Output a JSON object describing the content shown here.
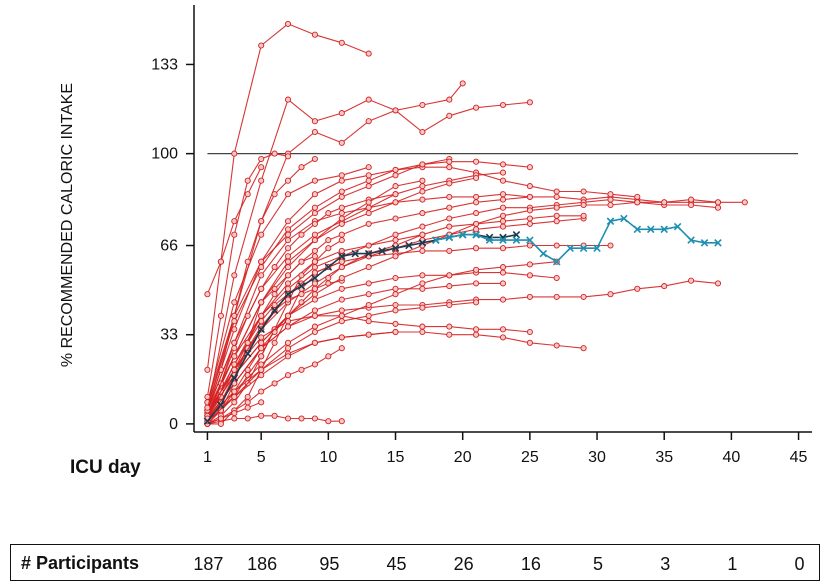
{
  "chart_data": {
    "type": "line",
    "title": "",
    "ylabel": "% RECOMMENDED CALORIC INTAKE",
    "xlabel": "ICU day",
    "xlim": [
      0,
      46
    ],
    "ylim": [
      -3,
      155
    ],
    "x_ticks": [
      1,
      5,
      10,
      15,
      20,
      25,
      30,
      35,
      40,
      45
    ],
    "y_ticks": [
      0,
      33,
      66,
      100,
      133
    ],
    "reference_line": 100,
    "colors": {
      "individual": "#d42020",
      "mean_early": "#1f3a4f",
      "mean_late": "#1f8fb0",
      "axis": "#111111"
    },
    "series": [
      {
        "x": [
          1,
          2,
          3,
          5,
          7,
          9,
          11,
          13
        ],
        "y": [
          20,
          60,
          100,
          140,
          148,
          144,
          141,
          137
        ]
      },
      {
        "x": [
          1,
          3,
          5,
          7,
          9,
          11,
          13,
          15,
          17,
          19,
          20
        ],
        "y": [
          5,
          55,
          90,
          120,
          112,
          115,
          120,
          116,
          118,
          120,
          126
        ]
      },
      {
        "x": [
          1,
          3,
          5,
          7,
          9,
          11,
          13,
          15,
          17,
          19,
          21,
          23,
          25
        ],
        "y": [
          8,
          40,
          75,
          100,
          108,
          104,
          112,
          116,
          108,
          114,
          117,
          118,
          119
        ]
      },
      {
        "x": [
          1,
          3,
          5,
          7,
          9,
          11,
          13,
          15,
          17,
          19,
          21,
          23,
          25,
          27,
          29,
          31,
          33,
          35,
          37,
          39,
          41
        ],
        "y": [
          5,
          30,
          55,
          68,
          75,
          78,
          80,
          82,
          83,
          84,
          84,
          85,
          84,
          84,
          83,
          84,
          83,
          82,
          82,
          82,
          82
        ]
      },
      {
        "x": [
          1,
          3,
          5,
          7,
          9,
          11,
          13,
          15,
          17,
          19,
          21,
          23,
          25,
          27,
          29,
          31,
          33,
          35,
          37,
          39
        ],
        "y": [
          3,
          25,
          40,
          50,
          58,
          62,
          66,
          70,
          73,
          76,
          78,
          80,
          80,
          81,
          82,
          83,
          82,
          81,
          81,
          80
        ]
      },
      {
        "x": [
          1,
          3,
          5,
          7,
          9,
          11,
          13,
          15,
          17,
          19,
          21,
          23,
          25,
          27,
          29,
          31,
          33
        ],
        "y": [
          5,
          35,
          60,
          75,
          85,
          90,
          92,
          94,
          95,
          95,
          93,
          90,
          88,
          86,
          86,
          85,
          84
        ]
      },
      {
        "x": [
          1,
          3,
          5,
          7,
          9,
          11,
          13,
          15,
          17,
          19,
          21,
          23,
          25,
          27,
          29
        ],
        "y": [
          3,
          20,
          35,
          45,
          52,
          58,
          62,
          65,
          68,
          70,
          72,
          73,
          74,
          75,
          76
        ]
      },
      {
        "x": [
          1,
          3,
          5,
          7,
          9,
          11,
          13,
          15,
          17,
          19,
          21,
          23,
          25,
          27,
          29,
          31,
          33,
          35,
          37,
          39
        ],
        "y": [
          2,
          15,
          28,
          36,
          40,
          42,
          43,
          44,
          44,
          45,
          46,
          46,
          47,
          47,
          47,
          48,
          50,
          51,
          53,
          52
        ]
      },
      {
        "x": [
          1,
          3,
          5,
          7,
          9,
          11,
          13,
          15,
          17,
          19,
          21,
          23,
          25,
          27,
          29
        ],
        "y": [
          2,
          12,
          20,
          26,
          30,
          32,
          33,
          34,
          34,
          33,
          33,
          32,
          30,
          29,
          28
        ]
      },
      {
        "x": [
          1,
          3,
          5,
          7,
          9,
          11,
          13,
          15,
          17,
          19,
          21,
          23,
          25,
          27
        ],
        "y": [
          3,
          18,
          30,
          40,
          46,
          50,
          52,
          54,
          55,
          55,
          56,
          56,
          55,
          54
        ]
      },
      {
        "x": [
          1,
          3,
          5,
          7,
          9,
          11,
          13,
          15,
          17,
          19,
          21,
          23,
          25
        ],
        "y": [
          4,
          20,
          32,
          38,
          40,
          40,
          38,
          37,
          36,
          36,
          35,
          35,
          34
        ]
      },
      {
        "x": [
          1,
          3,
          5,
          7,
          9,
          11,
          13,
          15,
          17,
          19,
          21,
          23
        ],
        "y": [
          5,
          30,
          50,
          62,
          70,
          75,
          80,
          85,
          88,
          90,
          92,
          93
        ]
      },
      {
        "x": [
          1,
          3,
          5,
          7,
          9,
          11,
          13,
          15,
          17,
          19,
          21
        ],
        "y": [
          4,
          25,
          45,
          60,
          68,
          74,
          78,
          82,
          86,
          89,
          91
        ]
      },
      {
        "x": [
          1,
          3,
          5,
          7,
          9,
          11,
          13,
          15,
          17,
          19
        ],
        "y": [
          6,
          40,
          60,
          70,
          78,
          84,
          88,
          92,
          96,
          98
        ]
      },
      {
        "x": [
          1,
          3,
          5,
          7,
          9,
          11,
          13,
          15,
          17
        ],
        "y": [
          3,
          22,
          40,
          52,
          60,
          64,
          66,
          68,
          70
        ]
      },
      {
        "x": [
          1,
          3,
          5,
          7,
          9,
          11,
          13,
          15
        ],
        "y": [
          2,
          10,
          18,
          25,
          30,
          32,
          33,
          34
        ]
      },
      {
        "x": [
          1,
          3,
          5,
          7,
          9,
          11,
          13
        ],
        "y": [
          8,
          45,
          70,
          85,
          90,
          92,
          95
        ]
      },
      {
        "x": [
          1,
          2,
          3,
          4,
          5,
          6,
          7,
          8,
          9,
          10,
          11
        ],
        "y": [
          0,
          5,
          10,
          18,
          25,
          35,
          45,
          55,
          60,
          65,
          68
        ]
      },
      {
        "x": [
          1,
          2,
          3,
          4,
          5,
          6,
          7,
          8,
          9,
          10,
          11
        ],
        "y": [
          2,
          12,
          22,
          30,
          38,
          44,
          48,
          52,
          56,
          58,
          60
        ]
      },
      {
        "x": [
          1,
          2,
          3,
          4,
          5,
          6,
          7,
          8,
          9,
          10,
          11
        ],
        "y": [
          0,
          2,
          5,
          8,
          12,
          15,
          18,
          20,
          22,
          25,
          28
        ]
      },
      {
        "x": [
          1,
          2,
          3,
          4,
          5,
          6,
          7,
          8,
          9,
          10,
          11
        ],
        "y": [
          0,
          1,
          2,
          2,
          3,
          3,
          2,
          2,
          2,
          1,
          1
        ]
      },
      {
        "x": [
          1,
          2,
          3,
          4,
          5,
          6,
          7,
          8,
          9
        ],
        "y": [
          5,
          20,
          40,
          60,
          75,
          85,
          90,
          95,
          98
        ]
      },
      {
        "x": [
          1,
          2,
          3,
          4,
          5,
          6,
          7,
          8,
          9
        ],
        "y": [
          0,
          0,
          5,
          10,
          20,
          30,
          40,
          50,
          55
        ]
      },
      {
        "x": [
          1,
          2,
          3,
          4,
          5,
          6,
          7,
          8,
          9
        ],
        "y": [
          1,
          5,
          15,
          30,
          45,
          50,
          55,
          60,
          62
        ]
      },
      {
        "x": [
          1,
          2,
          3,
          4,
          5,
          6,
          7
        ],
        "y": [
          0,
          3,
          8,
          15,
          25,
          35,
          40
        ]
      },
      {
        "x": [
          1,
          2,
          3,
          4,
          5,
          6,
          7
        ],
        "y": [
          10,
          40,
          70,
          90,
          98,
          100,
          99
        ]
      },
      {
        "x": [
          1,
          2,
          3,
          4,
          5
        ],
        "y": [
          0,
          2,
          4,
          6,
          8
        ]
      },
      {
        "x": [
          1,
          2,
          3,
          4,
          5
        ],
        "y": [
          48,
          60,
          75,
          85,
          95
        ]
      },
      {
        "x": [
          1,
          2,
          3
        ],
        "y": [
          3,
          15,
          30
        ]
      },
      {
        "x": [
          1,
          2,
          3,
          4,
          5,
          6,
          7,
          8,
          9,
          10,
          11
        ],
        "y": [
          1,
          8,
          18,
          28,
          36,
          42,
          46,
          48,
          50,
          52,
          53
        ]
      },
      {
        "x": [
          1,
          2,
          3,
          4,
          5,
          6,
          7,
          8,
          9,
          10,
          11,
          13,
          15,
          17,
          19,
          21,
          23,
          25,
          27,
          29
        ],
        "y": [
          0,
          5,
          12,
          20,
          28,
          34,
          40,
          45,
          50,
          54,
          58,
          63,
          66,
          70,
          73,
          74,
          75,
          76,
          77,
          77
        ]
      },
      {
        "x": [
          1,
          2,
          3,
          4,
          5,
          6,
          7,
          8,
          9,
          10,
          11,
          13,
          15,
          17,
          19,
          21,
          23,
          25
        ],
        "y": [
          2,
          10,
          20,
          30,
          40,
          48,
          55,
          60,
          64,
          68,
          70,
          74,
          76,
          78,
          80,
          82,
          83,
          84
        ]
      },
      {
        "x": [
          1,
          2,
          3,
          4,
          5,
          6,
          7,
          8,
          9,
          10,
          11,
          13,
          15
        ],
        "y": [
          3,
          15,
          28,
          40,
          50,
          58,
          65,
          70,
          74,
          78,
          80,
          83,
          85
        ]
      },
      {
        "x": [
          1,
          3,
          5,
          7,
          9,
          11,
          13,
          15,
          17,
          19,
          21,
          23,
          25,
          27,
          29,
          31
        ],
        "y": [
          4,
          20,
          35,
          48,
          56,
          60,
          62,
          63,
          64,
          64,
          65,
          65,
          66,
          66,
          66,
          66
        ]
      },
      {
        "x": [
          1,
          3,
          5,
          7,
          9,
          11,
          13,
          15,
          17,
          19,
          21,
          23
        ],
        "y": [
          2,
          15,
          28,
          36,
          42,
          46,
          48,
          50,
          50,
          51,
          52,
          52
        ]
      },
      {
        "x": [
          1,
          3,
          5,
          7,
          9,
          11,
          13,
          15,
          17
        ],
        "y": [
          5,
          25,
          45,
          58,
          68,
          76,
          82,
          88,
          90
        ]
      },
      {
        "x": [
          1,
          3,
          5,
          7,
          9,
          11,
          13,
          15,
          17,
          19,
          21,
          23,
          25,
          27,
          29,
          31,
          33,
          35,
          37,
          39
        ],
        "y": [
          3,
          18,
          30,
          40,
          48,
          54,
          58,
          62,
          66,
          70,
          74,
          77,
          79,
          80,
          81,
          81,
          82,
          82,
          83,
          82
        ]
      },
      {
        "x": [
          1,
          3,
          5,
          7,
          9,
          11,
          13,
          15,
          17,
          19,
          21,
          23,
          25
        ],
        "y": [
          6,
          38,
          58,
          72,
          80,
          86,
          90,
          94,
          96,
          97,
          97,
          96,
          95
        ]
      },
      {
        "x": [
          1,
          3,
          5,
          7,
          9,
          11,
          13,
          15,
          17,
          19,
          21
        ],
        "y": [
          1,
          10,
          20,
          28,
          34,
          38,
          40,
          42,
          43,
          44,
          45
        ]
      },
      {
        "x": [
          1,
          3,
          5,
          7,
          9,
          11,
          13,
          15,
          17,
          19,
          21,
          23,
          25,
          27
        ],
        "y": [
          2,
          12,
          22,
          30,
          36,
          40,
          44,
          48,
          52,
          55,
          57,
          58,
          59,
          60
        ]
      }
    ],
    "mean_series_early": {
      "x": [
        1,
        2,
        3,
        4,
        5,
        6,
        7,
        8,
        9,
        10,
        11,
        12,
        13,
        14,
        15,
        16,
        17,
        18,
        19,
        20,
        21,
        22,
        23,
        24
      ],
      "y": [
        1,
        7,
        17,
        26,
        35,
        42,
        48,
        51,
        54,
        58,
        62,
        63,
        63,
        64,
        65,
        66,
        67,
        68,
        69,
        70,
        70,
        69,
        69,
        70
      ]
    },
    "mean_series_late": {
      "x": [
        18,
        19,
        20,
        21,
        22,
        23,
        24,
        25,
        26,
        27,
        28,
        29,
        30,
        31,
        32,
        33,
        34,
        35,
        36,
        37,
        38,
        39
      ],
      "y": [
        68,
        69,
        70,
        70,
        68,
        68,
        68,
        68,
        63,
        60,
        65,
        65,
        65,
        75,
        76,
        72,
        72,
        72,
        73,
        68,
        67,
        67
      ]
    },
    "participants_label": "# Participants",
    "participants": [
      {
        "day": 1,
        "count": "187"
      },
      {
        "day": 5,
        "count": "186"
      },
      {
        "day": 10,
        "count": "95"
      },
      {
        "day": 15,
        "count": "45"
      },
      {
        "day": 20,
        "count": "26"
      },
      {
        "day": 25,
        "count": "16"
      },
      {
        "day": 30,
        "count": "5"
      },
      {
        "day": 35,
        "count": "3"
      },
      {
        "day": 40,
        "count": "1"
      },
      {
        "day": 45,
        "count": "0"
      }
    ]
  }
}
